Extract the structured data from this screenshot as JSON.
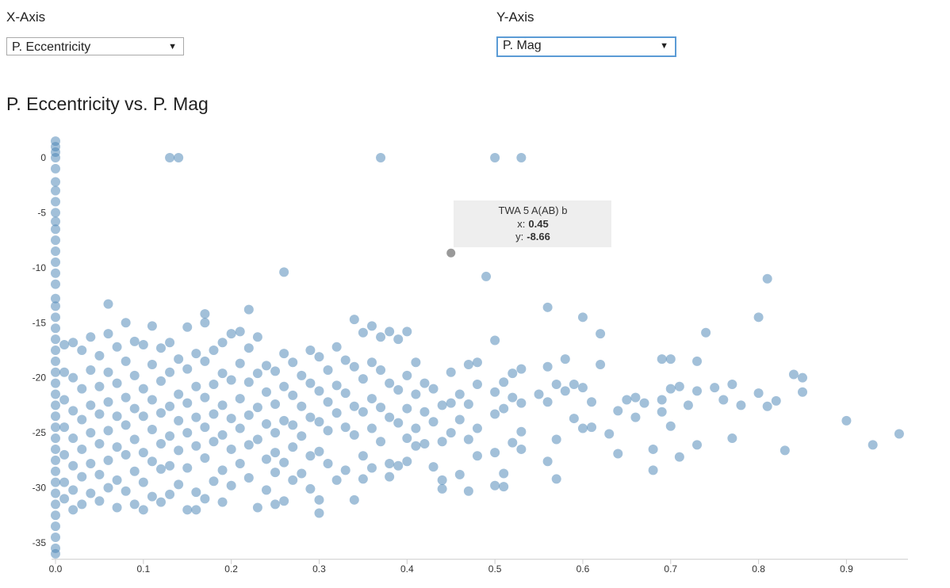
{
  "controls": {
    "x_label": "X-Axis",
    "x_selected": "P. Eccentricity",
    "y_label": "Y-Axis",
    "y_selected": "P. Mag"
  },
  "chart_data": {
    "type": "scatter",
    "title": "P. Eccentricity vs. P. Mag",
    "xlim": [
      0,
      0.97
    ],
    "ylim": [
      -36.5,
      2
    ],
    "xticks": [
      {
        "value": 0,
        "label": "0.0"
      },
      0.1,
      0.2,
      0.3,
      0.4,
      0.5,
      0.6,
      0.7,
      0.8,
      0.9
    ],
    "yticks": [
      0,
      -5,
      -10,
      -15,
      -20,
      -25,
      -30,
      -35
    ],
    "series": [
      {
        "color": "#4682b4",
        "x": [
          0,
          0,
          0,
          0,
          0,
          0,
          0,
          0,
          0,
          0,
          0,
          0,
          0,
          0,
          0,
          0,
          0,
          0,
          0,
          0,
          0,
          0,
          0,
          0,
          0,
          0,
          0,
          0,
          0,
          0,
          0,
          0,
          0,
          0,
          0,
          0,
          0,
          0,
          0,
          0,
          0,
          0.13,
          0.14,
          0.37,
          0.5,
          0.53,
          0.26,
          0.49,
          0.81,
          0.06,
          0.22,
          0.17,
          0.56,
          0.6,
          0.8,
          0.74,
          0.62,
          0.5,
          0.96,
          0.93,
          0.9,
          0.83,
          0.85,
          0.84,
          0.85,
          0.77,
          0.77,
          0.78,
          0.73,
          0.7,
          0.69,
          0.68,
          0.68,
          0.57,
          0.56,
          0.51,
          0.47,
          0.44,
          0.3,
          0.25,
          0.16,
          0.01,
          0.01,
          0.01,
          0.01,
          0.01,
          0.01,
          0.01,
          0.02,
          0.02,
          0.02,
          0.02,
          0.02,
          0.02,
          0.02,
          0.03,
          0.03,
          0.03,
          0.03,
          0.03,
          0.03,
          0.04,
          0.04,
          0.04,
          0.04,
          0.04,
          0.04,
          0.05,
          0.05,
          0.05,
          0.05,
          0.05,
          0.05,
          0.06,
          0.06,
          0.06,
          0.06,
          0.06,
          0.06,
          0.07,
          0.07,
          0.07,
          0.07,
          0.07,
          0.07,
          0.08,
          0.08,
          0.08,
          0.08,
          0.08,
          0.08,
          0.09,
          0.09,
          0.09,
          0.09,
          0.09,
          0.09,
          0.1,
          0.1,
          0.1,
          0.1,
          0.1,
          0.1,
          0.11,
          0.11,
          0.11,
          0.11,
          0.11,
          0.11,
          0.12,
          0.12,
          0.12,
          0.12,
          0.12,
          0.12,
          0.13,
          0.13,
          0.13,
          0.13,
          0.13,
          0.13,
          0.14,
          0.14,
          0.14,
          0.14,
          0.14,
          0.15,
          0.15,
          0.15,
          0.15,
          0.15,
          0.15,
          0.16,
          0.16,
          0.16,
          0.16,
          0.16,
          0.17,
          0.17,
          0.17,
          0.17,
          0.17,
          0.17,
          0.18,
          0.18,
          0.18,
          0.18,
          0.18,
          0.19,
          0.19,
          0.19,
          0.19,
          0.19,
          0.19,
          0.2,
          0.2,
          0.2,
          0.2,
          0.2,
          0.21,
          0.21,
          0.21,
          0.21,
          0.21,
          0.22,
          0.22,
          0.22,
          0.22,
          0.22,
          0.23,
          0.23,
          0.23,
          0.23,
          0.23,
          0.24,
          0.24,
          0.24,
          0.24,
          0.24,
          0.25,
          0.25,
          0.25,
          0.25,
          0.25,
          0.26,
          0.26,
          0.26,
          0.26,
          0.26,
          0.27,
          0.27,
          0.27,
          0.27,
          0.27,
          0.28,
          0.28,
          0.28,
          0.28,
          0.29,
          0.29,
          0.29,
          0.29,
          0.29,
          0.3,
          0.3,
          0.3,
          0.3,
          0.3,
          0.31,
          0.31,
          0.31,
          0.31,
          0.32,
          0.32,
          0.32,
          0.32,
          0.33,
          0.33,
          0.33,
          0.33,
          0.34,
          0.34,
          0.34,
          0.34,
          0.34,
          0.35,
          0.35,
          0.35,
          0.35,
          0.35,
          0.36,
          0.36,
          0.36,
          0.36,
          0.36,
          0.37,
          0.37,
          0.37,
          0.37,
          0.38,
          0.38,
          0.38,
          0.38,
          0.38,
          0.39,
          0.39,
          0.39,
          0.39,
          0.4,
          0.4,
          0.4,
          0.4,
          0.4,
          0.41,
          0.41,
          0.41,
          0.41,
          0.42,
          0.42,
          0.42,
          0.43,
          0.43,
          0.43,
          0.44,
          0.44,
          0.44,
          0.45,
          0.45,
          0.45,
          0.46,
          0.46,
          0.46,
          0.47,
          0.47,
          0.47,
          0.48,
          0.48,
          0.48,
          0.48,
          0.5,
          0.5,
          0.5,
          0.5,
          0.51,
          0.51,
          0.51,
          0.52,
          0.52,
          0.52,
          0.53,
          0.53,
          0.53,
          0.53,
          0.55,
          0.56,
          0.56,
          0.57,
          0.57,
          0.58,
          0.58,
          0.59,
          0.59,
          0.6,
          0.6,
          0.61,
          0.61,
          0.62,
          0.63,
          0.64,
          0.64,
          0.65,
          0.66,
          0.66,
          0.67,
          0.69,
          0.69,
          0.7,
          0.7,
          0.71,
          0.71,
          0.72,
          0.73,
          0.73,
          0.75,
          0.76,
          0.8,
          0.81,
          0.82
        ],
        "values": [
          1.5,
          1,
          0.5,
          0,
          -1,
          -2.2,
          -3,
          -4,
          -5,
          -5.8,
          -6.5,
          -7.5,
          -8.5,
          -9.5,
          -10.5,
          -11.5,
          -12.8,
          -13.5,
          -14.5,
          -15.5,
          -16.5,
          -17.5,
          -18.5,
          -19.5,
          -20.5,
          -21.5,
          -22.5,
          -23.5,
          -24.5,
          -25.5,
          -26.5,
          -27.5,
          -28.5,
          -29.5,
          -30.5,
          -31.5,
          -32.5,
          -33.5,
          -34.5,
          -35.5,
          -36,
          0,
          0,
          0,
          0,
          0,
          -10.4,
          -10.8,
          -11,
          -13.3,
          -13.8,
          -14.2,
          -13.6,
          -14.5,
          -14.5,
          -15.9,
          -16,
          -16.6,
          -25.1,
          -26.1,
          -23.9,
          -26.6,
          -21.3,
          -19.7,
          -20,
          -25.5,
          -20.6,
          -22.5,
          -18.5,
          -18.3,
          -18.3,
          -28.4,
          -26.5,
          -29.2,
          -27.6,
          -29.9,
          -30.3,
          -30.1,
          -32.3,
          -31.5,
          -32,
          -17,
          -19.5,
          -22,
          -24.5,
          -27,
          -29.5,
          -31,
          -16.8,
          -20,
          -23,
          -25.5,
          -28,
          -30.2,
          -32,
          -17.5,
          -21,
          -23.8,
          -26.5,
          -29,
          -31.5,
          -16.3,
          -19.3,
          -22.5,
          -25,
          -27.8,
          -30.5,
          -18,
          -20.8,
          -23.3,
          -26,
          -28.8,
          -31.2,
          -16,
          -19.5,
          -22.2,
          -24.8,
          -27.5,
          -30,
          -17.2,
          -20.5,
          -23.5,
          -26.3,
          -29.3,
          -31.8,
          -15,
          -18.5,
          -21.8,
          -24.3,
          -27,
          -30.3,
          -16.7,
          -19.8,
          -22.8,
          -25.6,
          -28.5,
          -31.5,
          -17,
          -21,
          -23.5,
          -26.8,
          -29.5,
          -32,
          -15.3,
          -18.8,
          -22,
          -24.7,
          -27.6,
          -30.8,
          -17.3,
          -20.3,
          -23.2,
          -26,
          -28.3,
          -31.3,
          -16.8,
          -19.5,
          -22.6,
          -25.3,
          -28,
          -30.6,
          -18.3,
          -21.5,
          -23.9,
          -26.6,
          -29.7,
          -15.4,
          -19.2,
          -22.3,
          -25,
          -28.2,
          -32,
          -17.8,
          -20.8,
          -23.6,
          -26.2,
          -30.4,
          -15,
          -18.5,
          -21.8,
          -24.5,
          -27.3,
          -31,
          -17.5,
          -20.6,
          -23.3,
          -25.8,
          -29.4,
          -16.8,
          -19.6,
          -22.5,
          -25.2,
          -28.4,
          -31.3,
          -16,
          -20.2,
          -23.7,
          -26.5,
          -29.8,
          -15.8,
          -18.7,
          -21.9,
          -24.6,
          -27.8,
          -17.3,
          -20.4,
          -23.4,
          -26.1,
          -29.1,
          -16.3,
          -19.6,
          -22.7,
          -25.6,
          -31.8,
          -18.9,
          -21.3,
          -24.2,
          -27.4,
          -30.2,
          -19.4,
          -22.4,
          -25,
          -26.8,
          -28.6,
          -17.8,
          -20.8,
          -23.9,
          -27.7,
          -31.2,
          -18.6,
          -21.6,
          -24.3,
          -26.3,
          -29.3,
          -19.8,
          -22.6,
          -25.3,
          -28.7,
          -17.5,
          -20.5,
          -23.6,
          -27.1,
          -30.1,
          -18.1,
          -21.2,
          -24,
          -26.7,
          -31.1,
          -19.3,
          -22.2,
          -24.8,
          -27.8,
          -17.2,
          -20.7,
          -23.2,
          -29.3,
          -18.4,
          -21.4,
          -24.5,
          -28.4,
          -14.7,
          -19,
          -22.6,
          -25.2,
          -31.1,
          -15.9,
          -20.1,
          -23.1,
          -27.1,
          -29.2,
          -15.3,
          -18.6,
          -21.9,
          -24.6,
          -28.2,
          -16.3,
          -19.3,
          -22.7,
          -25.8,
          -15.8,
          -20.5,
          -23.6,
          -27.8,
          -29,
          -16.5,
          -21.1,
          -24.1,
          -28,
          -15.8,
          -19.8,
          -22.8,
          -25.5,
          -27.6,
          -18.6,
          -21.5,
          -24.6,
          -26.2,
          -20.5,
          -23.1,
          -26,
          -21,
          -24,
          -28.1,
          -22.5,
          -25.8,
          -29.3,
          -19.5,
          -22.3,
          -25,
          -21.5,
          -23.8,
          -28.8,
          -18.8,
          -22.4,
          -25.6,
          -18.6,
          -20.6,
          -24.6,
          -27.1,
          -21.3,
          -23.3,
          -26.8,
          -29.8,
          -20.4,
          -22.8,
          -28.7,
          -19.6,
          -21.8,
          -25.9,
          -19.2,
          -22.3,
          -24.9,
          -26.5,
          -21.5,
          -19,
          -22.2,
          -20.6,
          -25.6,
          -18.3,
          -21.2,
          -20.6,
          -23.7,
          -20.9,
          -24.6,
          -22.2,
          -24.5,
          -18.8,
          -25.1,
          -23,
          -26.9,
          -22,
          -21.8,
          -23.6,
          -22.3,
          -22,
          -23.1,
          -21,
          -24.4,
          -20.8,
          -27.2,
          -22.5,
          -21.2,
          -26.1,
          -20.9,
          -22,
          -21.4,
          -22.6,
          -22.1
        ]
      }
    ],
    "tooltip": {
      "name": "TWA 5 A(AB) b",
      "x_prefix": "x:",
      "x": 0.45,
      "y_prefix": "y:",
      "y": -8.66,
      "color": "#999999"
    }
  }
}
